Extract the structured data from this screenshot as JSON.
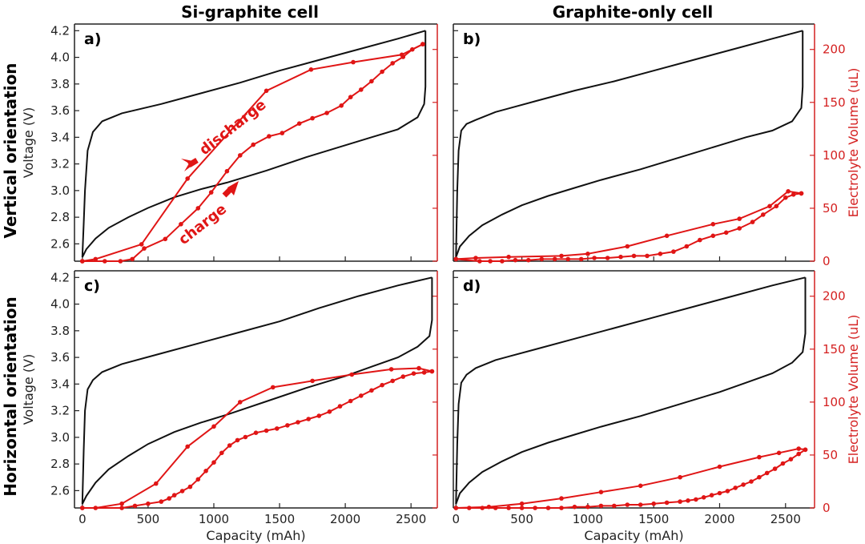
{
  "figure": {
    "col_titles": [
      "Si-graphite cell",
      "Graphite-only cell"
    ],
    "row_titles": [
      "Vertical orientation",
      "Horizontal orientation"
    ],
    "colors": {
      "voltage": "#111111",
      "electrolyte": "#e01515",
      "right_axis": "#d42020"
    }
  },
  "chart_data": [
    {
      "panel": "a)",
      "type": "line",
      "xlabel": "",
      "ylabel": "Voltage (V)",
      "y2label": "",
      "xlim": [
        -60,
        2700
      ],
      "ylim": [
        2.47,
        4.25
      ],
      "y2lim": [
        0,
        224
      ],
      "x_ticks": [],
      "y_ticks": [
        "2.6",
        "2.8",
        "3.0",
        "3.2",
        "3.4",
        "3.6",
        "3.8",
        "4.0",
        "4.2"
      ],
      "y2_ticks": [],
      "voltage_charge": [
        [
          0,
          2.5
        ],
        [
          30,
          2.56
        ],
        [
          100,
          2.64
        ],
        [
          200,
          2.72
        ],
        [
          350,
          2.8
        ],
        [
          500,
          2.87
        ],
        [
          700,
          2.95
        ],
        [
          900,
          3.01
        ],
        [
          1100,
          3.06
        ],
        [
          1400,
          3.15
        ],
        [
          1700,
          3.25
        ],
        [
          2000,
          3.34
        ],
        [
          2200,
          3.4
        ],
        [
          2400,
          3.46
        ],
        [
          2550,
          3.55
        ],
        [
          2600,
          3.65
        ],
        [
          2610,
          3.78
        ],
        [
          2610,
          4.2
        ]
      ],
      "voltage_discharge": [
        [
          2610,
          4.2
        ],
        [
          2400,
          4.14
        ],
        [
          2100,
          4.06
        ],
        [
          1800,
          3.98
        ],
        [
          1500,
          3.9
        ],
        [
          1200,
          3.81
        ],
        [
          900,
          3.73
        ],
        [
          600,
          3.65
        ],
        [
          300,
          3.58
        ],
        [
          150,
          3.52
        ],
        [
          80,
          3.44
        ],
        [
          40,
          3.3
        ],
        [
          20,
          3.0
        ],
        [
          10,
          2.75
        ],
        [
          0,
          2.5
        ]
      ],
      "electrolyte_charge": [
        [
          0,
          0
        ],
        [
          170,
          0
        ],
        [
          290,
          0
        ],
        [
          380,
          2
        ],
        [
          470,
          12
        ],
        [
          630,
          21
        ],
        [
          750,
          35
        ],
        [
          880,
          50
        ],
        [
          980,
          65
        ],
        [
          1100,
          85
        ],
        [
          1200,
          100
        ],
        [
          1300,
          110
        ],
        [
          1420,
          118
        ],
        [
          1520,
          121
        ],
        [
          1650,
          130
        ],
        [
          1750,
          135
        ],
        [
          1860,
          140
        ],
        [
          1970,
          147
        ],
        [
          2040,
          155
        ],
        [
          2120,
          162
        ],
        [
          2200,
          170
        ],
        [
          2280,
          179
        ],
        [
          2360,
          187
        ],
        [
          2440,
          193
        ],
        [
          2510,
          200
        ],
        [
          2590,
          205
        ]
      ],
      "electrolyte_discharge": [
        [
          2590,
          205
        ],
        [
          2430,
          195
        ],
        [
          2060,
          188
        ],
        [
          1740,
          181
        ],
        [
          1400,
          161
        ],
        [
          800,
          78
        ],
        [
          450,
          16
        ],
        [
          100,
          2
        ],
        [
          0,
          0
        ]
      ],
      "annotations": [
        "discharge",
        "charge"
      ]
    },
    {
      "panel": "b)",
      "type": "line",
      "xlabel": "",
      "ylabel": "",
      "y2label": "Electrolyte Volume (uL)",
      "xlim": [
        -20,
        2720
      ],
      "ylim": [
        2.47,
        4.25
      ],
      "y2lim": [
        0,
        224
      ],
      "x_ticks": [],
      "y_ticks": [],
      "y2_ticks": [
        "0",
        "50",
        "100",
        "150",
        "200"
      ],
      "voltage_charge": [
        [
          0,
          2.5
        ],
        [
          30,
          2.58
        ],
        [
          100,
          2.66
        ],
        [
          200,
          2.74
        ],
        [
          350,
          2.82
        ],
        [
          500,
          2.89
        ],
        [
          700,
          2.96
        ],
        [
          900,
          3.02
        ],
        [
          1100,
          3.08
        ],
        [
          1400,
          3.16
        ],
        [
          1700,
          3.25
        ],
        [
          2000,
          3.34
        ],
        [
          2200,
          3.4
        ],
        [
          2400,
          3.45
        ],
        [
          2550,
          3.52
        ],
        [
          2620,
          3.62
        ],
        [
          2630,
          3.78
        ],
        [
          2630,
          4.2
        ]
      ],
      "voltage_discharge": [
        [
          2630,
          4.2
        ],
        [
          2400,
          4.14
        ],
        [
          2100,
          4.06
        ],
        [
          1800,
          3.98
        ],
        [
          1500,
          3.9
        ],
        [
          1200,
          3.82
        ],
        [
          900,
          3.75
        ],
        [
          600,
          3.67
        ],
        [
          300,
          3.59
        ],
        [
          150,
          3.53
        ],
        [
          80,
          3.5
        ],
        [
          40,
          3.45
        ],
        [
          20,
          3.3
        ],
        [
          10,
          3.0
        ],
        [
          0,
          2.5
        ]
      ],
      "electrolyte_charge": [
        [
          0,
          2
        ],
        [
          180,
          0
        ],
        [
          260,
          0
        ],
        [
          350,
          0
        ],
        [
          450,
          1
        ],
        [
          550,
          1
        ],
        [
          650,
          2
        ],
        [
          750,
          2
        ],
        [
          850,
          2
        ],
        [
          950,
          2
        ],
        [
          1050,
          3
        ],
        [
          1150,
          3
        ],
        [
          1250,
          4
        ],
        [
          1350,
          5
        ],
        [
          1450,
          5
        ],
        [
          1550,
          7
        ],
        [
          1650,
          9
        ],
        [
          1750,
          14
        ],
        [
          1850,
          20
        ],
        [
          1950,
          24
        ],
        [
          2050,
          27
        ],
        [
          2150,
          31
        ],
        [
          2250,
          37
        ],
        [
          2330,
          44
        ],
        [
          2430,
          52
        ],
        [
          2500,
          60
        ],
        [
          2560,
          63
        ],
        [
          2620,
          64
        ]
      ],
      "electrolyte_discharge": [
        [
          2620,
          64
        ],
        [
          2520,
          66
        ],
        [
          2380,
          52
        ],
        [
          2150,
          40
        ],
        [
          1950,
          35
        ],
        [
          1600,
          24
        ],
        [
          1300,
          14
        ],
        [
          1000,
          7
        ],
        [
          800,
          5
        ],
        [
          400,
          4
        ],
        [
          150,
          3
        ],
        [
          0,
          2
        ]
      ],
      "annotations": []
    },
    {
      "panel": "c)",
      "type": "line",
      "xlabel": "Capacity (mAh)",
      "ylabel": "Voltage (V)",
      "y2label": "",
      "xlim": [
        -60,
        2700
      ],
      "ylim": [
        2.47,
        4.25
      ],
      "y2lim": [
        0,
        224
      ],
      "x_ticks": [
        "0",
        "500",
        "1000",
        "1500",
        "2000",
        "2500"
      ],
      "y_ticks": [
        "2.6",
        "2.8",
        "3.0",
        "3.2",
        "3.4",
        "3.6",
        "3.8",
        "4.0",
        "4.2"
      ],
      "y2_ticks": [],
      "voltage_charge": [
        [
          0,
          2.5
        ],
        [
          30,
          2.56
        ],
        [
          100,
          2.66
        ],
        [
          200,
          2.76
        ],
        [
          350,
          2.86
        ],
        [
          500,
          2.95
        ],
        [
          700,
          3.04
        ],
        [
          900,
          3.11
        ],
        [
          1100,
          3.17
        ],
        [
          1400,
          3.27
        ],
        [
          1700,
          3.37
        ],
        [
          2000,
          3.46
        ],
        [
          2200,
          3.53
        ],
        [
          2400,
          3.6
        ],
        [
          2550,
          3.68
        ],
        [
          2640,
          3.76
        ],
        [
          2660,
          3.88
        ],
        [
          2660,
          4.2
        ]
      ],
      "voltage_discharge": [
        [
          2660,
          4.2
        ],
        [
          2400,
          4.14
        ],
        [
          2100,
          4.06
        ],
        [
          1800,
          3.97
        ],
        [
          1500,
          3.87
        ],
        [
          1200,
          3.79
        ],
        [
          900,
          3.71
        ],
        [
          600,
          3.63
        ],
        [
          300,
          3.55
        ],
        [
          150,
          3.49
        ],
        [
          80,
          3.43
        ],
        [
          40,
          3.36
        ],
        [
          20,
          3.2
        ],
        [
          10,
          2.9
        ],
        [
          0,
          2.5
        ]
      ],
      "electrolyte_charge": [
        [
          0,
          0
        ],
        [
          300,
          0
        ],
        [
          400,
          2
        ],
        [
          500,
          4
        ],
        [
          600,
          6
        ],
        [
          660,
          9
        ],
        [
          700,
          12
        ],
        [
          760,
          16
        ],
        [
          820,
          20
        ],
        [
          880,
          27
        ],
        [
          940,
          35
        ],
        [
          1000,
          43
        ],
        [
          1060,
          52
        ],
        [
          1120,
          59
        ],
        [
          1180,
          64
        ],
        [
          1240,
          67
        ],
        [
          1320,
          71
        ],
        [
          1400,
          73
        ],
        [
          1480,
          75
        ],
        [
          1560,
          78
        ],
        [
          1640,
          81
        ],
        [
          1720,
          84
        ],
        [
          1800,
          87
        ],
        [
          1880,
          91
        ],
        [
          1960,
          96
        ],
        [
          2040,
          101
        ],
        [
          2120,
          106
        ],
        [
          2200,
          111
        ],
        [
          2280,
          116
        ],
        [
          2360,
          120
        ],
        [
          2440,
          124
        ],
        [
          2520,
          127
        ],
        [
          2600,
          128
        ],
        [
          2660,
          129
        ]
      ],
      "electrolyte_discharge": [
        [
          2660,
          129
        ],
        [
          2560,
          132
        ],
        [
          2350,
          131
        ],
        [
          2050,
          126
        ],
        [
          1750,
          120
        ],
        [
          1450,
          114
        ],
        [
          1200,
          100
        ],
        [
          1000,
          77
        ],
        [
          800,
          58
        ],
        [
          560,
          23
        ],
        [
          300,
          4
        ],
        [
          100,
          0
        ],
        [
          0,
          0
        ]
      ],
      "annotations": []
    },
    {
      "panel": "d)",
      "type": "line",
      "xlabel": "Capacity (mAh)",
      "ylabel": "",
      "y2label": "Electrolyte Volume (uL)",
      "xlim": [
        -20,
        2720
      ],
      "ylim": [
        2.47,
        4.25
      ],
      "y2lim": [
        0,
        224
      ],
      "x_ticks": [
        "0",
        "500",
        "1000",
        "1500",
        "2000",
        "2500"
      ],
      "y_ticks": [],
      "y2_ticks": [
        "0",
        "50",
        "100",
        "150",
        "200"
      ],
      "voltage_charge": [
        [
          0,
          2.5
        ],
        [
          30,
          2.58
        ],
        [
          100,
          2.66
        ],
        [
          200,
          2.74
        ],
        [
          350,
          2.82
        ],
        [
          500,
          2.89
        ],
        [
          700,
          2.96
        ],
        [
          900,
          3.02
        ],
        [
          1100,
          3.08
        ],
        [
          1400,
          3.16
        ],
        [
          1700,
          3.25
        ],
        [
          2000,
          3.34
        ],
        [
          2200,
          3.41
        ],
        [
          2400,
          3.48
        ],
        [
          2550,
          3.56
        ],
        [
          2630,
          3.64
        ],
        [
          2650,
          3.78
        ],
        [
          2650,
          4.2
        ]
      ],
      "voltage_discharge": [
        [
          2650,
          4.2
        ],
        [
          2400,
          4.14
        ],
        [
          2100,
          4.06
        ],
        [
          1800,
          3.98
        ],
        [
          1500,
          3.9
        ],
        [
          1200,
          3.82
        ],
        [
          900,
          3.74
        ],
        [
          600,
          3.66
        ],
        [
          300,
          3.58
        ],
        [
          150,
          3.52
        ],
        [
          80,
          3.47
        ],
        [
          40,
          3.41
        ],
        [
          20,
          3.25
        ],
        [
          10,
          2.95
        ],
        [
          0,
          2.5
        ]
      ],
      "electrolyte_charge": [
        [
          0,
          0
        ],
        [
          100,
          0
        ],
        [
          200,
          0
        ],
        [
          300,
          0
        ],
        [
          400,
          0
        ],
        [
          500,
          0
        ],
        [
          600,
          0
        ],
        [
          700,
          0
        ],
        [
          800,
          0
        ],
        [
          900,
          1
        ],
        [
          1000,
          1
        ],
        [
          1100,
          2
        ],
        [
          1200,
          2
        ],
        [
          1300,
          3
        ],
        [
          1400,
          3
        ],
        [
          1500,
          4
        ],
        [
          1600,
          5
        ],
        [
          1700,
          6
        ],
        [
          1760,
          7
        ],
        [
          1820,
          8
        ],
        [
          1880,
          10
        ],
        [
          1940,
          12
        ],
        [
          2000,
          14
        ],
        [
          2060,
          16
        ],
        [
          2120,
          19
        ],
        [
          2180,
          22
        ],
        [
          2240,
          25
        ],
        [
          2300,
          29
        ],
        [
          2360,
          33
        ],
        [
          2420,
          37
        ],
        [
          2480,
          42
        ],
        [
          2540,
          46
        ],
        [
          2600,
          51
        ],
        [
          2650,
          55
        ]
      ],
      "electrolyte_discharge": [
        [
          2650,
          55
        ],
        [
          2600,
          56
        ],
        [
          2450,
          52
        ],
        [
          2300,
          48
        ],
        [
          2000,
          39
        ],
        [
          1700,
          29
        ],
        [
          1400,
          21
        ],
        [
          1100,
          15
        ],
        [
          800,
          9
        ],
        [
          500,
          4
        ],
        [
          250,
          1
        ],
        [
          0,
          0
        ]
      ],
      "annotations": []
    }
  ]
}
